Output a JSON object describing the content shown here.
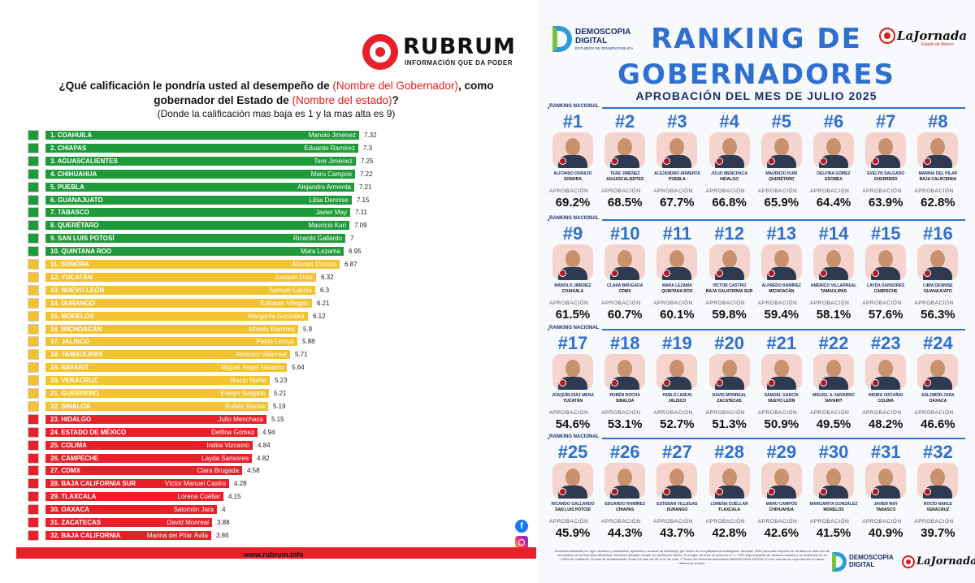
{
  "rubrum": {
    "brand": "RUBRUM",
    "tagline": "INFORMACIÓN QUE DA PODER",
    "question_line1_pre": "¿Qué calificación le pondría usted al desempeño de ",
    "question_line1_red": "(Nombre del Gobernador)",
    "question_line1_post": ", como",
    "question_line2_pre": "gobernador del Estado de ",
    "question_line2_red": "(Nombre del estado)",
    "question_line2_post": "?",
    "question_line3": "(Donde la calificación mas baja es 1 y la mas alta es 9)",
    "url": "www.rubrum.info",
    "colors": {
      "green": "#1f9a3a",
      "yellow": "#f2c230",
      "red": "#e8202a"
    }
  },
  "chart_data": [
    {
      "type": "bar",
      "orientation": "horizontal",
      "categories": [
        "1. COAHUILA",
        "2. CHIAPAS",
        "3. AGUASCALIENTES",
        "4. CHIHUAHUA",
        "5. PUEBLA",
        "6. GUANAJUATO",
        "7. TABASCO",
        "8. QUERÉTARO",
        "9. SAN LUIS POTOSÍ",
        "10. QUINTANA ROO",
        "11. SONORA",
        "12. YUCATÁN",
        "13. NUEVO LEÓN",
        "14. DURANGO",
        "15. MORELOS",
        "16. MICHOACÁN",
        "17. JALISCO",
        "18. TAMAULIPAS",
        "19. NAYARIT",
        "20. VERACRUZ",
        "21. GUERRERO",
        "22. SINALOA",
        "23. HIDALGO",
        "24. ESTADO DE MÉXICO",
        "25. COLIMA",
        "26. CAMPECHE",
        "27. CDMX",
        "28. BAJA CALIFORNIA SUR",
        "29. TLAXCALA",
        "30. OAXACA",
        "31. ZACATECAS",
        "32. BAJA CALIFORNIA"
      ],
      "governors": [
        "Manolo Jiménez",
        "Eduardo Ramírez",
        "Tere Jiménez",
        "Maru Campos",
        "Alejandro Armenta",
        "Libia Dennise",
        "Javier May",
        "Mauricio Kuri",
        "Ricardo Gallardo",
        "Mara Lezama",
        "Alfonso Durazo",
        "Joaquín Díaz",
        "Samuel García",
        "Esteban Villegas",
        "Margarita González",
        "Alfredo Ramírez",
        "Pablo Lemus",
        "Américo Villarreal",
        "Miguel Ángel Navarro",
        "Rocío Nahle",
        "Evelyn Salgado",
        "Rubén Rocha",
        "Julio Menchaca",
        "Delfina Gómez",
        "Indira Vizcaíno",
        "Layda Sansores",
        "Clara Brugada",
        "Víctor Manuel Castro",
        "Lorena Cuéllar",
        "Salomón Jara",
        "David Monreal",
        "Marina del Pilar Ávila"
      ],
      "values": [
        7.32,
        7.3,
        7.25,
        7.22,
        7.21,
        7.15,
        7.11,
        7.09,
        7,
        6.95,
        6.87,
        6.32,
        6.3,
        6.21,
        6.12,
        5.9,
        5.88,
        5.71,
        5.64,
        5.23,
        5.21,
        5.19,
        5.15,
        4.94,
        4.84,
        4.82,
        4.58,
        4.28,
        4.15,
        4,
        3.88,
        3.86
      ],
      "value_labels": [
        "7.32",
        "7.3",
        "7.25",
        "7.22",
        "7.21",
        "7.15",
        "7.11",
        "7.09",
        "7",
        "6.95",
        "6.87",
        "6.32",
        "6.3",
        "6.21",
        "6.12",
        "5.9",
        "5.88",
        "5.71",
        "5.64",
        "5.23",
        "5.21",
        "5.19",
        "5.15",
        "4.94",
        "4.84",
        "4.82",
        "4.58",
        "4.28",
        "4.15",
        "4",
        "3.88",
        "3.86"
      ],
      "colors": [
        "green",
        "green",
        "green",
        "green",
        "green",
        "green",
        "green",
        "green",
        "green",
        "green",
        "yellow",
        "yellow",
        "yellow",
        "yellow",
        "yellow",
        "yellow",
        "yellow",
        "yellow",
        "yellow",
        "yellow",
        "yellow",
        "yellow",
        "red",
        "red",
        "red",
        "red",
        "red",
        "red",
        "red",
        "red",
        "red",
        "red"
      ],
      "title": "¿Qué calificación le pondría usted al desempeño de (Nombre del Gobernador), como gobernador del Estado de (Nombre del estado)?",
      "xlim": [
        0,
        9
      ]
    },
    {
      "type": "table",
      "title": "RANKING DE GOBERNADORES",
      "subtitle": "APROBACIÓN DEL MES DE JULIO 2025",
      "section_label": "RANKING NACIONAL",
      "metric_label": "APROBACIÓN",
      "rows": [
        {
          "rank": "#1",
          "name": "ALFONSO DURAZO",
          "state": "SONORA",
          "approval": "69.2%"
        },
        {
          "rank": "#2",
          "name": "TERE JIMÉNEZ",
          "state": "AGUASCALIENTES",
          "approval": "68.5%"
        },
        {
          "rank": "#3",
          "name": "ALEJANDRO ARMENTA",
          "state": "PUEBLA",
          "approval": "67.7%"
        },
        {
          "rank": "#4",
          "name": "JULIO MENCHACA",
          "state": "HIDALGO",
          "approval": "66.8%"
        },
        {
          "rank": "#5",
          "name": "MAURICIO KURI",
          "state": "QUERÉTARO",
          "approval": "65.9%"
        },
        {
          "rank": "#6",
          "name": "DELFINA GÓMEZ",
          "state": "EDOMEX",
          "approval": "64.4%"
        },
        {
          "rank": "#7",
          "name": "EVELYN SALGADO",
          "state": "GUERRERO",
          "approval": "63.9%"
        },
        {
          "rank": "#8",
          "name": "MARINA DEL PILAR",
          "state": "BAJA CALIFORNIA",
          "approval": "62.8%"
        },
        {
          "rank": "#9",
          "name": "MANOLO JIMÉNEZ",
          "state": "COAHUILA",
          "approval": "61.5%"
        },
        {
          "rank": "#10",
          "name": "CLARA BRUGADA",
          "state": "CDMX",
          "approval": "60.7%"
        },
        {
          "rank": "#11",
          "name": "MARA LEZAMA",
          "state": "QUINTANA ROO",
          "approval": "60.1%"
        },
        {
          "rank": "#12",
          "name": "VÍCTOR CASTRO",
          "state": "BAJA CALIFORNIA SUR",
          "approval": "59.8%"
        },
        {
          "rank": "#13",
          "name": "ALFREDO RAMÍREZ",
          "state": "MICHOACÁN",
          "approval": "59.4%"
        },
        {
          "rank": "#14",
          "name": "AMÉRICO VILLARREAL",
          "state": "TAMAULIPAS",
          "approval": "58.1%"
        },
        {
          "rank": "#15",
          "name": "LAYDA SANSORES",
          "state": "CAMPECHE",
          "approval": "57.6%"
        },
        {
          "rank": "#16",
          "name": "LIBIA DENNISE",
          "state": "GUANAJUATO",
          "approval": "56.3%"
        },
        {
          "rank": "#17",
          "name": "JOAQUÍN DÍAZ MENA",
          "state": "YUCATÁN",
          "approval": "54.6%"
        },
        {
          "rank": "#18",
          "name": "RUBÉN ROCHA",
          "state": "SINALOA",
          "approval": "53.1%"
        },
        {
          "rank": "#19",
          "name": "PABLO LEMUS",
          "state": "JALISCO",
          "approval": "52.7%"
        },
        {
          "rank": "#20",
          "name": "DAVID MONREAL",
          "state": "ZACATECAS",
          "approval": "51.3%"
        },
        {
          "rank": "#21",
          "name": "SAMUEL GARCÍA",
          "state": "NUEVO LEÓN",
          "approval": "50.9%"
        },
        {
          "rank": "#22",
          "name": "MIGUEL A. NAVARRO",
          "state": "NAYARIT",
          "approval": "49.5%"
        },
        {
          "rank": "#23",
          "name": "INDIRA VIZCAÍNO",
          "state": "COLIMA",
          "approval": "48.2%"
        },
        {
          "rank": "#24",
          "name": "SALOMÓN JARA",
          "state": "OAXACA",
          "approval": "46.6%"
        },
        {
          "rank": "#25",
          "name": "RICARDO GALLARDO",
          "state": "SAN LUIS POTOSÍ",
          "approval": "45.9%"
        },
        {
          "rank": "#26",
          "name": "EDUARDO RAMÍREZ",
          "state": "CHIAPAS",
          "approval": "44.3%"
        },
        {
          "rank": "#27",
          "name": "ESTEBAN VILLEGAS",
          "state": "DURANGO",
          "approval": "43.7%"
        },
        {
          "rank": "#28",
          "name": "LORENA CUÉLLAR",
          "state": "TLAXCALA",
          "approval": "42.8%"
        },
        {
          "rank": "#29",
          "name": "MARU CAMPOS",
          "state": "CHIHUAHUA",
          "approval": "42.6%"
        },
        {
          "rank": "#30",
          "name": "MARGARITA GONZÁLEZ",
          "state": "MORELOS",
          "approval": "41.5%"
        },
        {
          "rank": "#31",
          "name": "JAVIER MAY",
          "state": "TABASCO",
          "approval": "40.9%"
        },
        {
          "rank": "#32",
          "name": "ROCÍO NAHLE",
          "state": "VERACRUZ",
          "approval": "39.7%"
        }
      ]
    }
  ],
  "demoscopia": {
    "brand_line1": "DEMOSCOPIA",
    "brand_line2": "DIGITAL",
    "brand_tagline": "ESTUDIOS DE OPINIÓN PÚBLICA",
    "partner": "LaJornada",
    "partner_sub": "Estado de México",
    "title_line1": "RANKING DE",
    "title_line2": "GOBERNADORES",
    "footer_note": "Encuesta realizada con rigor científico y estadístico, aplicada a usuarios de WhatsApp por medio de una plataforma multiagente. Muestra: 1000 personas mayores de 18 años en cada uno de los estados de la República Mexicana. Muestreo aleatorio simple con población infinita, el margen de error se ubica en el +/- 3.8% bajo supuesto de varianza máxima y se determina en un 0.95% de confianza. Fechas de levantamiento: Entre los días del 28 al 31 de Julio. © Todos los derechos reservados DEMOSCOPIA DIGITAL S.A se autoriza su reproducción si hacen referencia al autor.",
    "colors": {
      "accent": "#2f6fd0",
      "navy": "#1a2f6b"
    }
  }
}
